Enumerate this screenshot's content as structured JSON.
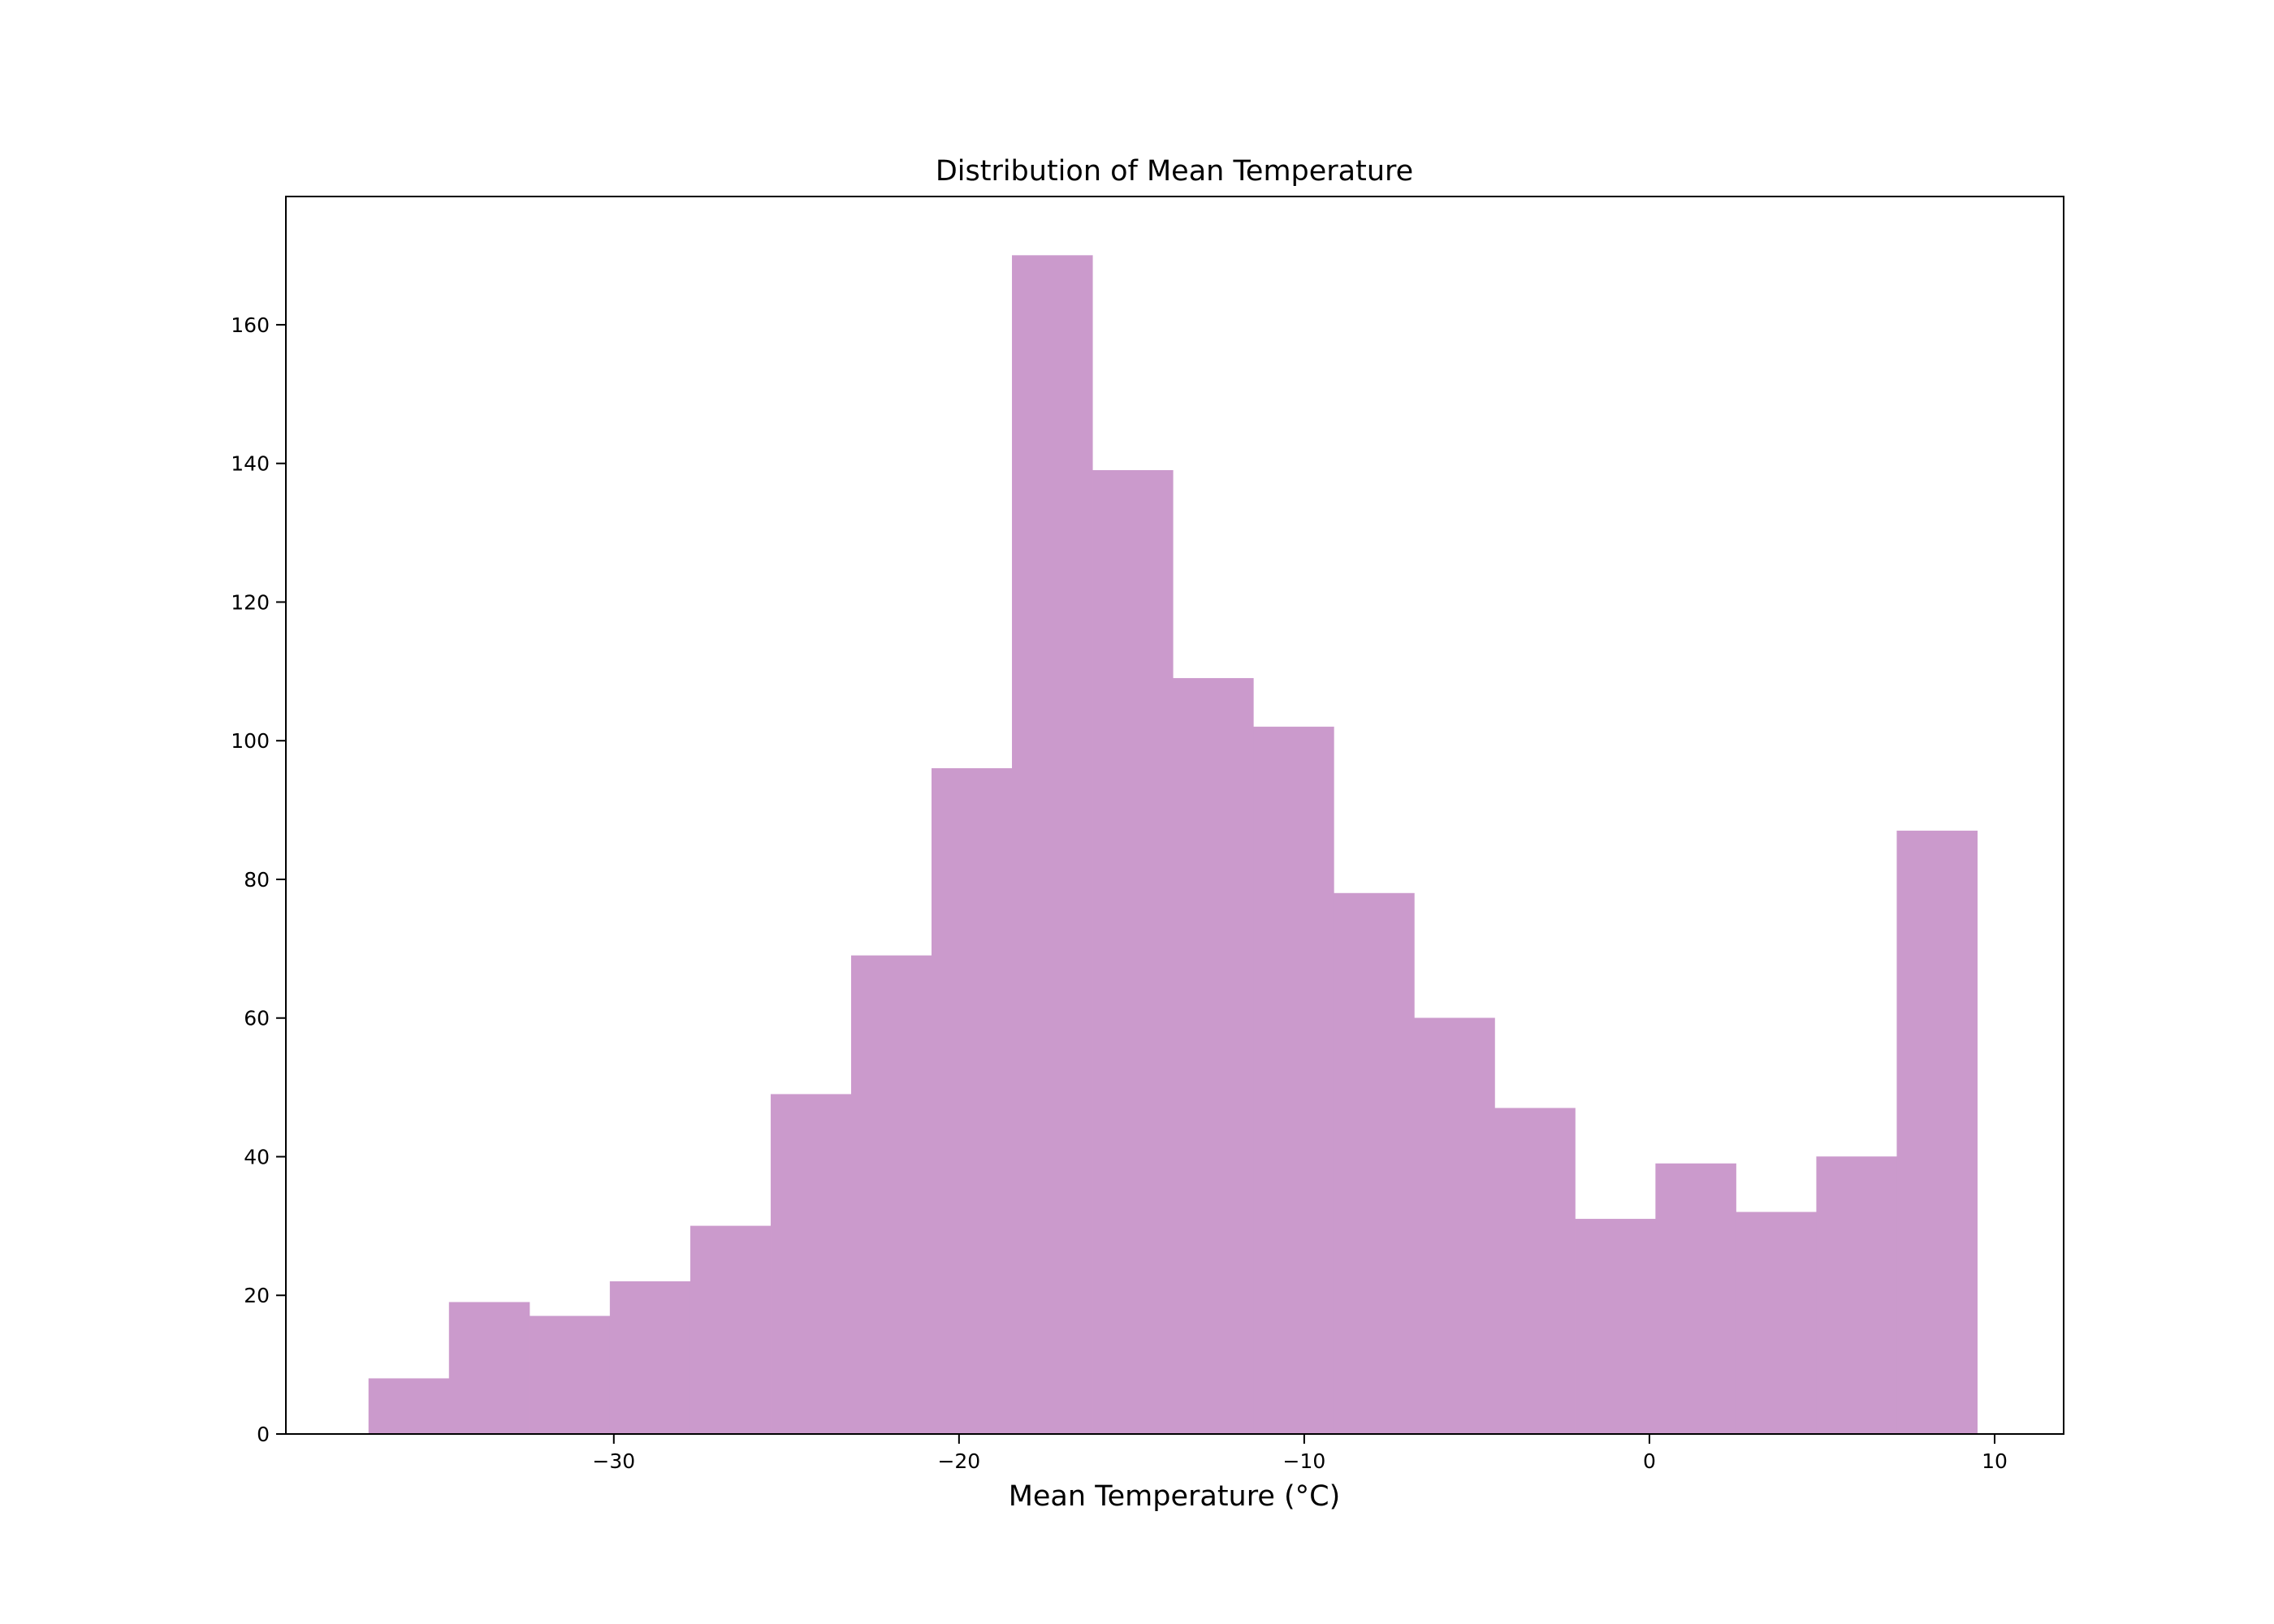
{
  "chart_data": {
    "type": "bar",
    "subtype": "histogram",
    "title": "Distribution of Mean Temperature",
    "xlabel": "Mean Temperature (°C)",
    "ylabel": "",
    "xlim": [
      -39.5,
      12.0
    ],
    "ylim": [
      0,
      178.5
    ],
    "bar_color": "#cb9acc",
    "x_ticks": [
      {
        "value": -30,
        "label": "−30"
      },
      {
        "value": -20,
        "label": "−20"
      },
      {
        "value": -10,
        "label": "−10"
      },
      {
        "value": 0,
        "label": "0"
      },
      {
        "value": 10,
        "label": "10"
      }
    ],
    "y_ticks": [
      {
        "value": 0,
        "label": "0"
      },
      {
        "value": 20,
        "label": "20"
      },
      {
        "value": 40,
        "label": "40"
      },
      {
        "value": 60,
        "label": "60"
      },
      {
        "value": 80,
        "label": "80"
      },
      {
        "value": 100,
        "label": "100"
      },
      {
        "value": 120,
        "label": "120"
      },
      {
        "value": 140,
        "label": "140"
      },
      {
        "value": 160,
        "label": "160"
      }
    ],
    "bins": [
      {
        "x0": -37.1,
        "x1": -34.77,
        "count": 8
      },
      {
        "x0": -34.77,
        "x1": -32.44,
        "count": 19
      },
      {
        "x0": -32.44,
        "x1": -30.11,
        "count": 17
      },
      {
        "x0": -30.11,
        "x1": -27.78,
        "count": 22
      },
      {
        "x0": -27.78,
        "x1": -25.45,
        "count": 30
      },
      {
        "x0": -25.45,
        "x1": -23.12,
        "count": 49
      },
      {
        "x0": -23.12,
        "x1": -20.79,
        "count": 69
      },
      {
        "x0": -20.79,
        "x1": -18.46,
        "count": 96
      },
      {
        "x0": -18.46,
        "x1": -16.13,
        "count": 170
      },
      {
        "x0": -16.13,
        "x1": -13.8,
        "count": 139
      },
      {
        "x0": -13.8,
        "x1": -11.47,
        "count": 109
      },
      {
        "x0": -11.47,
        "x1": -9.14,
        "count": 102
      },
      {
        "x0": -9.14,
        "x1": -6.81,
        "count": 78
      },
      {
        "x0": -6.81,
        "x1": -4.48,
        "count": 60
      },
      {
        "x0": -4.48,
        "x1": -2.15,
        "count": 47
      },
      {
        "x0": -2.15,
        "x1": 0.18,
        "count": 31
      },
      {
        "x0": 0.18,
        "x1": 2.51,
        "count": 39
      },
      {
        "x0": 2.51,
        "x1": 4.84,
        "count": 32
      },
      {
        "x0": 4.84,
        "x1": 7.17,
        "count": 40
      },
      {
        "x0": 7.17,
        "x1": 9.5,
        "count": 87
      }
    ]
  }
}
